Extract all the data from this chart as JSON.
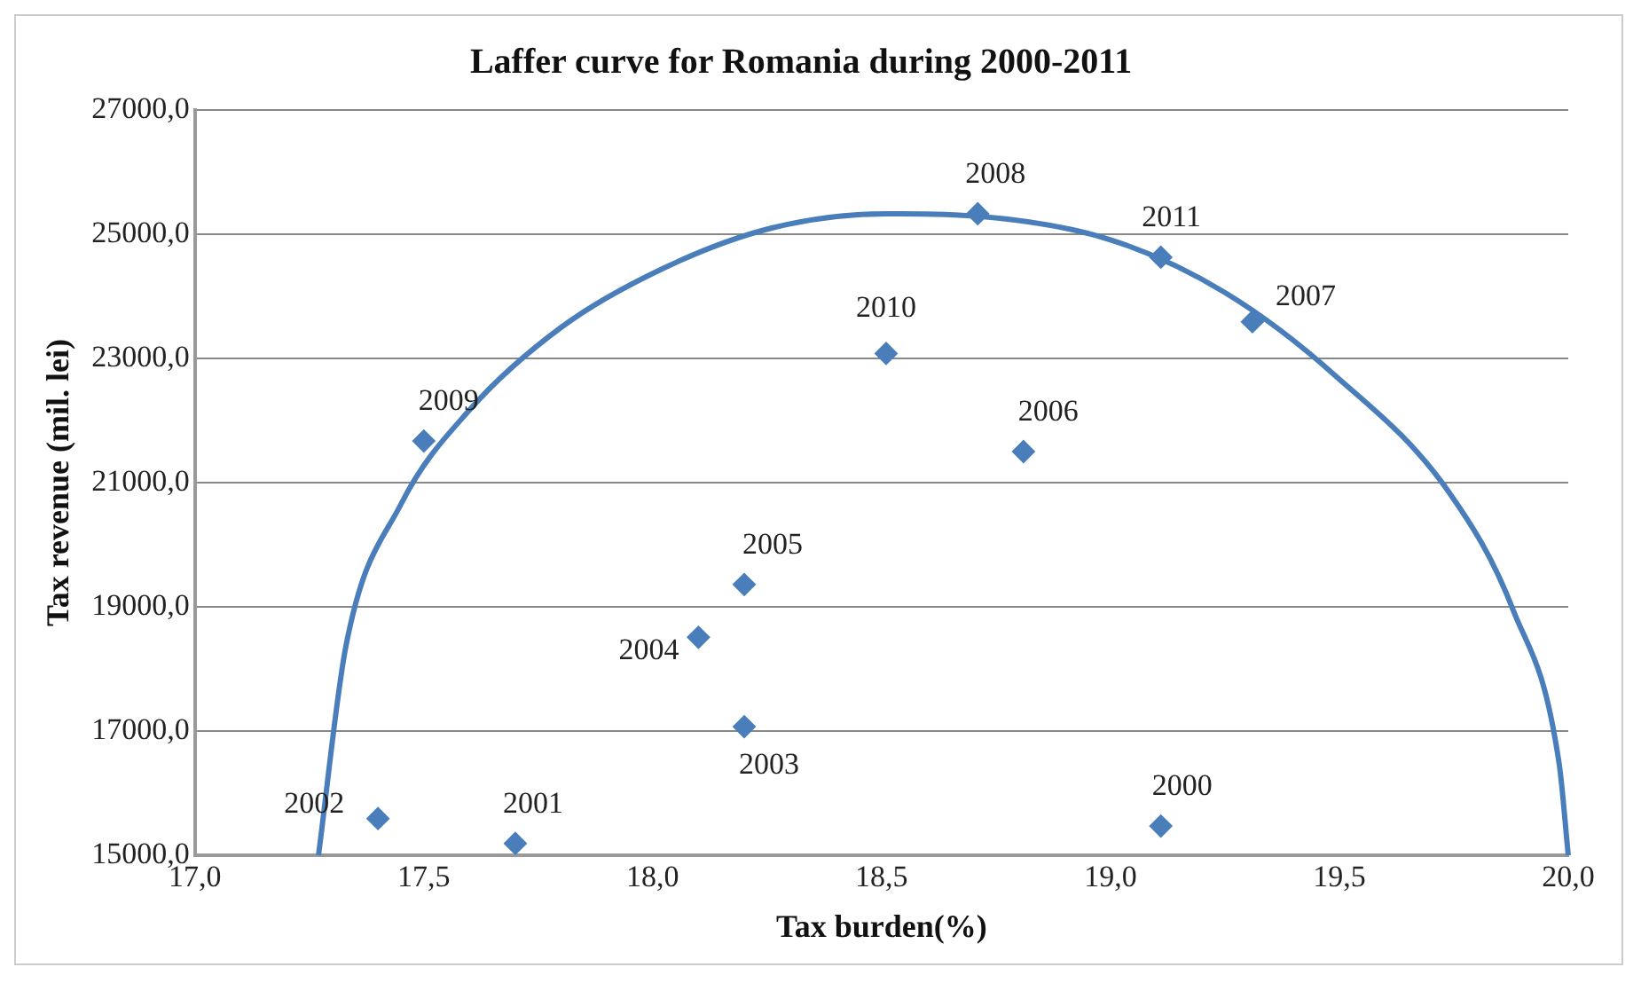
{
  "chart_data": {
    "type": "scatter",
    "title": "Laffer curve for Romania during 2000-2011",
    "xlabel": "Tax burden(%)",
    "ylabel": "Tax revenue (mil. lei)",
    "series": [
      {
        "color": "#4a7ebb",
        "marker": "diamond",
        "x": [
          19.11,
          17.7,
          17.4,
          18.2,
          18.1,
          18.2,
          18.81,
          19.31,
          18.71,
          17.5,
          18.51,
          19.11
        ],
        "values": [
          15470,
          15190,
          15590,
          17070,
          18510,
          19360,
          21500,
          23590,
          25330,
          21670,
          23080,
          24630
        ]
      },
      {
        "type": "line",
        "color": "#4a7ebb",
        "marker": "none",
        "line_style": "solid",
        "x": [
          17.27,
          17.33,
          17.45,
          17.6,
          17.8,
          18.02,
          18.26,
          18.51,
          18.71,
          19.0,
          19.25,
          19.49,
          19.74,
          19.88,
          19.98,
          20.0
        ],
        "values": [
          15000,
          18370,
          20650,
          22170,
          23500,
          24440,
          25100,
          25330,
          25290,
          24910,
          24060,
          22730,
          20840,
          18940,
          16480,
          15000
        ]
      }
    ],
    "annotations": [
      {
        "text": "2000",
        "x": 19.11,
        "y": 15470
      },
      {
        "text": "2001",
        "x": 17.7,
        "y": 15190
      },
      {
        "text": "2002",
        "x": 17.4,
        "y": 15590
      },
      {
        "text": "2003",
        "x": 18.2,
        "y": 17070
      },
      {
        "text": "2004",
        "x": 18.1,
        "y": 18510
      },
      {
        "text": "2005",
        "x": 18.2,
        "y": 19360
      },
      {
        "text": "2006",
        "x": 18.81,
        "y": 21500
      },
      {
        "text": "2007",
        "x": 19.31,
        "y": 23590
      },
      {
        "text": "2008",
        "x": 18.71,
        "y": 25330
      },
      {
        "text": "2009",
        "x": 17.5,
        "y": 21670
      },
      {
        "text": "2010",
        "x": 18.51,
        "y": 23080
      },
      {
        "text": "2011",
        "x": 19.11,
        "y": 24630
      }
    ],
    "xlim": [
      17,
      20
    ],
    "xticks": [
      {
        "value": 17,
        "label": "17,0"
      },
      {
        "value": 17.5,
        "label": "17,5"
      },
      {
        "value": 18,
        "label": "18,0"
      },
      {
        "value": 18.5,
        "label": "18,5"
      },
      {
        "value": 19,
        "label": "19,0"
      },
      {
        "value": 19.5,
        "label": "19,5"
      },
      {
        "value": 20,
        "label": "20,0"
      }
    ],
    "ylim": [
      15000,
      27000
    ],
    "yticks": [
      {
        "value": 15000,
        "label": "15000,0"
      },
      {
        "value": 17000,
        "label": "17000,0"
      },
      {
        "value": 19000,
        "label": "19000,0"
      },
      {
        "value": 21000,
        "label": "21000,0"
      },
      {
        "value": 23000,
        "label": "23000,0"
      },
      {
        "value": 25000,
        "label": "25000,0"
      },
      {
        "value": 27000,
        "label": "27000,0"
      }
    ],
    "grid": "y",
    "legend": false
  }
}
